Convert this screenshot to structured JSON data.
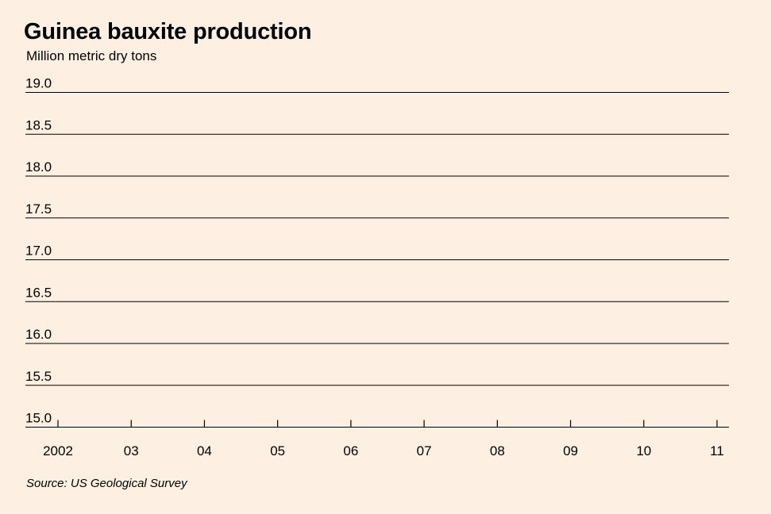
{
  "chart_data": {
    "type": "line",
    "title": "Guinea bauxite production",
    "subtitle": "Million metric dry tons",
    "source": "Source: US Geological Survey",
    "x": [
      "2002",
      "03",
      "04",
      "05",
      "06",
      "07",
      "08",
      "09",
      "10",
      "11"
    ],
    "y_ticks": [
      "15.0",
      "15.5",
      "16.0",
      "16.5",
      "17.0",
      "17.5",
      "18.0",
      "18.5",
      "19.0"
    ],
    "ylim": [
      15.0,
      19.0
    ],
    "grid": true,
    "series": []
  },
  "colors": {
    "background": "#fdf0e2",
    "gridline": "#000000"
  }
}
